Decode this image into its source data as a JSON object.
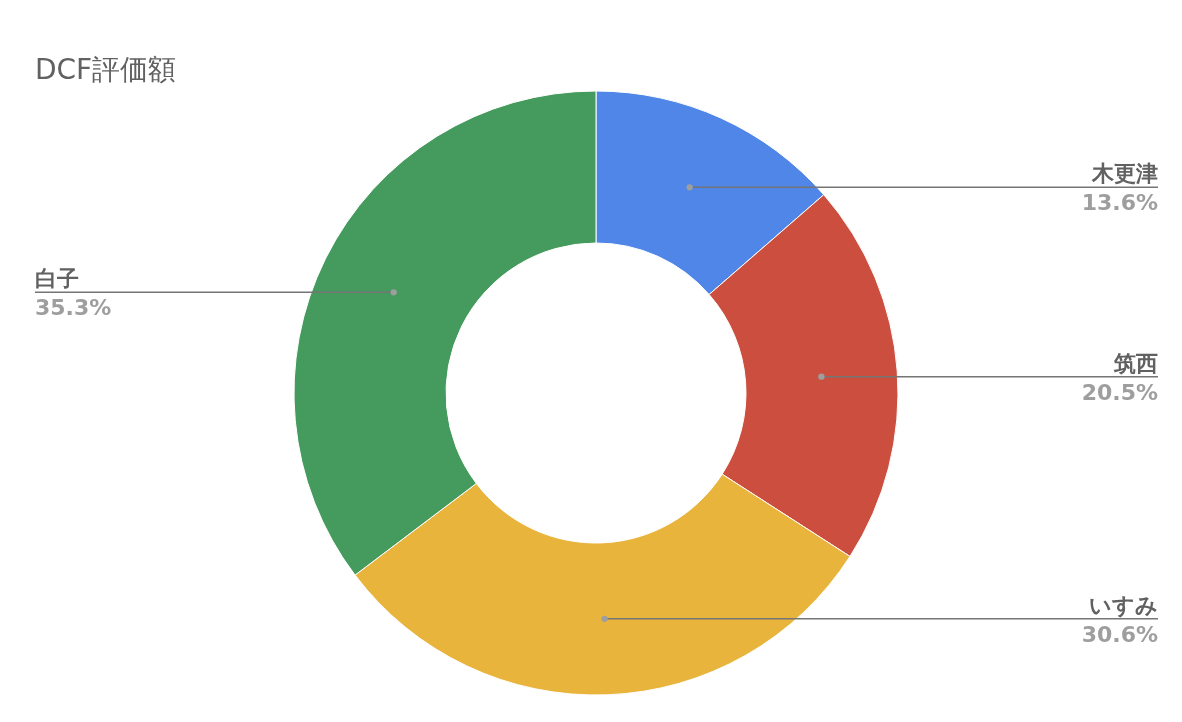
{
  "chart_data": {
    "type": "donut",
    "title": "DCF評価額",
    "categories": [
      "木更津",
      "筑西",
      "いすみ",
      "白子"
    ],
    "values": [
      13.6,
      20.5,
      30.6,
      35.3
    ],
    "value_labels": [
      "13.6%",
      "20.5%",
      "30.6%",
      "35.3%"
    ],
    "colors": [
      "#4f86e8",
      "#cc4e3e",
      "#e9b43b",
      "#459a5d"
    ]
  }
}
